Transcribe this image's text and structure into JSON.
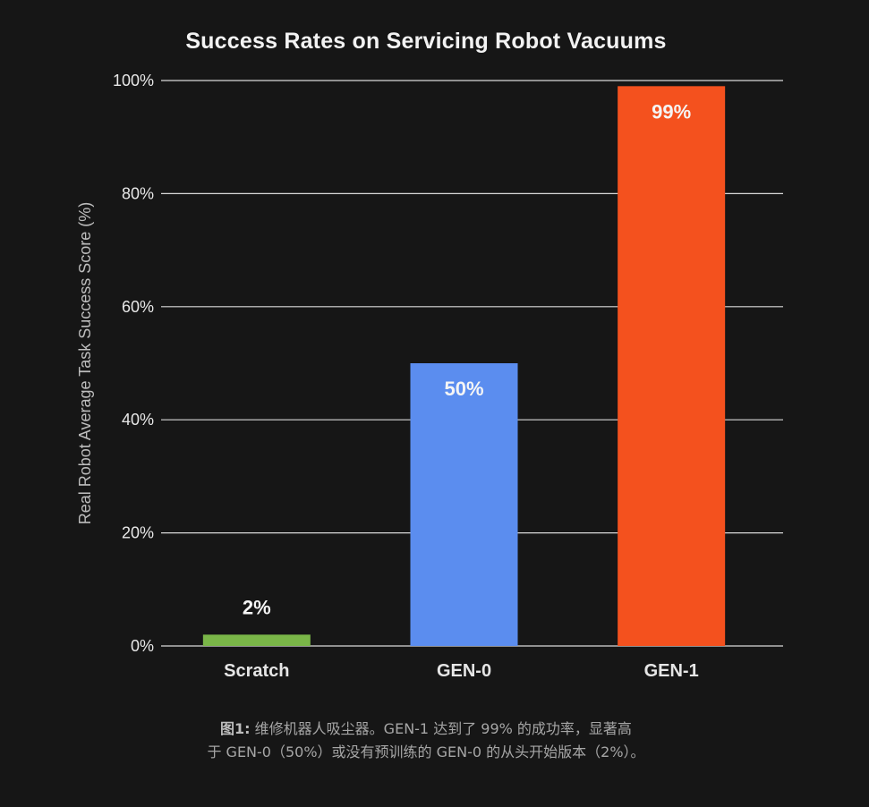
{
  "chart_data": {
    "type": "bar",
    "title": "Success Rates on Servicing Robot Vacuums",
    "xlabel": "",
    "ylabel": "Real Robot Average Task Success Score (%)",
    "categories": [
      "Scratch",
      "GEN-0",
      "GEN-1"
    ],
    "values": [
      2,
      50,
      99
    ],
    "data_labels": [
      "2%",
      "50%",
      "99%"
    ],
    "bar_colors": [
      "#7ab648",
      "#5b8def",
      "#f4511e"
    ],
    "ylim": [
      0,
      100
    ],
    "yticks": [
      0,
      20,
      40,
      60,
      80,
      100
    ],
    "ytick_labels": [
      "0%",
      "20%",
      "40%",
      "60%",
      "80%",
      "100%"
    ],
    "grid": true,
    "legend": "none",
    "data_label_position": "inside-top (above bar when too short)"
  },
  "caption": {
    "label": "图1:",
    "line1": " 维修机器人吸尘器。GEN-1 达到了 99% 的成功率，显著高",
    "line2": "于 GEN-0（50%）或没有预训练的 GEN-0 的从头开始版本（2%）。"
  },
  "colors": {
    "background": "#161616",
    "grid": "#d9d9d9",
    "text": "#e8e8e8",
    "axis_label": "#bdbdbd"
  }
}
